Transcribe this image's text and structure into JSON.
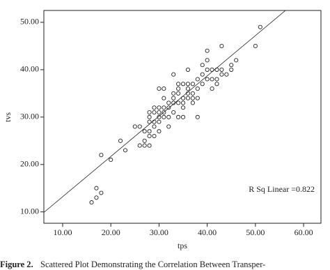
{
  "chart_data": {
    "type": "scatter",
    "x_label": "tps",
    "y_label": "tvs",
    "annotation": "R Sq Linear =0.822",
    "caption_label": "Figure 2.",
    "caption": "Scattered Plot Demonstrating the Correlation Between Transper-",
    "xlim": [
      6.1,
      63.6
    ],
    "ylim": [
      7.6,
      52.5
    ],
    "xticks": [
      {
        "value": 10,
        "label": "10.00"
      },
      {
        "value": 20,
        "label": "20.00"
      },
      {
        "value": 30,
        "label": "30.00"
      },
      {
        "value": 40,
        "label": "40.00"
      },
      {
        "value": 50,
        "label": "50.00"
      },
      {
        "value": 60,
        "label": "60.00"
      }
    ],
    "yticks": [
      {
        "value": 10,
        "label": "10.00"
      },
      {
        "value": 20,
        "label": "20.00"
      },
      {
        "value": 30,
        "label": "30.00"
      },
      {
        "value": 40,
        "label": "40.00"
      },
      {
        "value": 50,
        "label": "50.00"
      }
    ],
    "color": "#222222",
    "fit": {
      "slope": 0.85,
      "intercept": 4.7
    },
    "x": [
      16,
      17,
      17,
      18,
      18,
      20,
      22,
      23,
      25,
      26,
      26,
      27,
      27,
      28,
      27,
      28,
      28,
      28,
      28,
      29,
      29,
      29,
      29,
      30,
      30,
      30,
      30,
      30,
      31,
      31,
      31,
      31,
      32,
      32,
      32,
      32,
      33,
      33,
      33,
      33,
      34,
      34,
      34,
      34,
      34,
      35,
      35,
      35,
      35,
      36,
      36,
      36,
      36,
      37,
      37,
      37,
      38,
      38,
      38,
      39,
      39,
      39,
      40,
      40,
      40,
      40,
      41,
      41,
      41,
      42,
      42,
      42,
      43,
      43,
      44,
      45,
      45,
      43,
      46,
      50,
      51,
      30,
      31,
      33,
      36,
      37,
      35,
      29,
      28,
      38
    ],
    "y": [
      12,
      13,
      15,
      14,
      22,
      21,
      25,
      23,
      28,
      28,
      24,
      25,
      24,
      24,
      27,
      27,
      29,
      30,
      31,
      31,
      32,
      28,
      29,
      29,
      30,
      31,
      32,
      27,
      32,
      30,
      31,
      36,
      32,
      33,
      30,
      28,
      33,
      34,
      31,
      35,
      33,
      35,
      36,
      30,
      37,
      37,
      34,
      33,
      32,
      35,
      36,
      37,
      34,
      34,
      35,
      37,
      36,
      34,
      38,
      37,
      39,
      41,
      38,
      40,
      42,
      44,
      38,
      40,
      36,
      40,
      38,
      37,
      40,
      39,
      39,
      41,
      40,
      45,
      42,
      45,
      49,
      36,
      34,
      39,
      40,
      33,
      30,
      26,
      26,
      30
    ]
  }
}
